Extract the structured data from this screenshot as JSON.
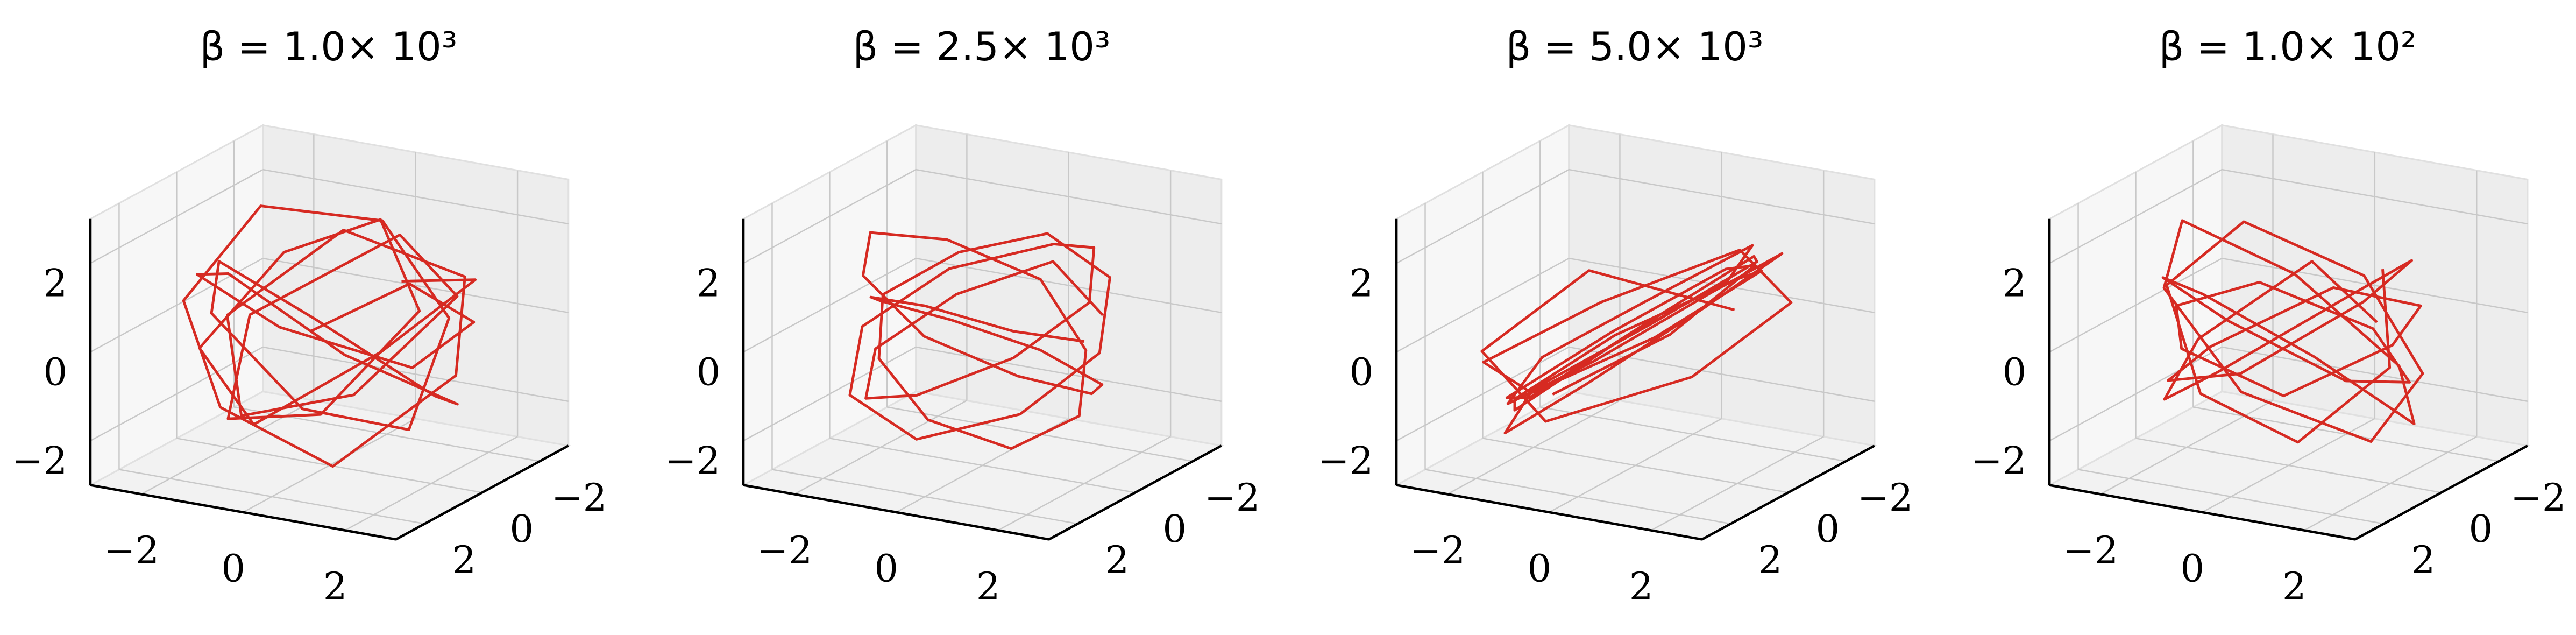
{
  "chart_data": [
    {
      "type": "line3d",
      "title": "β = 1.0× 10³",
      "xlim": [
        -3,
        3
      ],
      "ylim": [
        -3,
        3
      ],
      "zlim": [
        -3,
        3
      ],
      "xticks": [
        {
          "value": -2,
          "label": "−2"
        },
        0,
        2
      ],
      "yticks": [
        {
          "value": -2,
          "label": "−2"
        },
        0,
        2
      ],
      "zticks": [
        {
          "value": -2,
          "label": "−2"
        },
        0,
        2
      ],
      "series": [
        {
          "color": "#d62a22",
          "x": [
            0.3,
            1.8,
            2.1,
            0.5,
            -1.6,
            -2.2,
            -0.8,
            1.2,
            2.4,
            1.0,
            -1.1,
            -2.0,
            -1.3,
            0.6,
            1.9,
            1.5,
            -0.2,
            -1.8,
            -2.3,
            -0.9,
            0.8,
            2.2,
            1.7,
            -0.4,
            -1.5,
            -0.6,
            1.1,
            2.0,
            0.2,
            -1.9,
            -1.2,
            0.9,
            1.6,
            0.1,
            -1.4,
            -2.1,
            -0.3,
            1.3,
            2.3,
            0.4
          ],
          "y": [
            1.2,
            0.4,
            -1.3,
            -2.0,
            -1.1,
            0.7,
            2.1,
            1.6,
            -0.2,
            -1.9,
            -1.4,
            0.3,
            1.8,
            2.0,
            0.6,
            -1.5,
            -2.2,
            -0.8,
            1.0,
            2.2,
            1.3,
            -0.5,
            -1.7,
            -1.2,
            0.9,
            2.0,
            1.1,
            -0.9,
            -2.1,
            -0.6,
            1.4,
            1.9,
            -0.3,
            -1.6,
            -0.9,
            0.8,
            2.1,
            0.5,
            -1.0,
            -1.8
          ],
          "z": [
            0.5,
            1.6,
            0.2,
            -1.4,
            -0.6,
            1.1,
            1.9,
            0.3,
            -1.2,
            -1.9,
            -0.4,
            1.3,
            0.8,
            -0.9,
            -1.6,
            0.1,
            1.7,
            2.2,
            0.6,
            -1.1,
            -2.4,
            -0.7,
            1.0,
            1.8,
            0.4,
            -1.3,
            -0.8,
            0.9,
            1.5,
            -0.2,
            -1.7,
            -1.0,
            0.7,
            2.0,
            1.2,
            -0.5,
            -1.4,
            0.0,
            1.3,
            0.6
          ]
        }
      ]
    },
    {
      "type": "line3d",
      "title": "β = 2.5× 10³",
      "xlim": [
        -3,
        3
      ],
      "ylim": [
        -3,
        3
      ],
      "zlim": [
        -3,
        3
      ],
      "xticks": [
        {
          "value": -2,
          "label": "−2"
        },
        0,
        2
      ],
      "yticks": [
        {
          "value": -2,
          "label": "−2"
        },
        0,
        2
      ],
      "zticks": [
        {
          "value": -2,
          "label": "−2"
        },
        0,
        2
      ],
      "series": [
        {
          "color": "#d62a22",
          "x": [
            2.0,
            1.4,
            0.0,
            -1.4,
            -2.0,
            -1.4,
            0.0,
            1.5,
            2.2,
            1.6,
            0.1,
            -1.5,
            -2.2,
            -1.6,
            -0.1,
            1.3,
            1.9,
            1.3,
            0.0,
            -1.3,
            -1.9,
            -1.2,
            0.2,
            1.6,
            2.3,
            1.7,
            0.0,
            -1.7,
            -2.3,
            -1.5,
            0.1,
            1.4,
            2.1,
            1.4,
            -0.1,
            -1.5,
            -2.1,
            -1.3,
            0.2,
            1.8
          ],
          "y": [
            0.0,
            1.4,
            2.0,
            1.4,
            0.0,
            -1.4,
            -2.0,
            -1.5,
            0.1,
            1.6,
            2.2,
            1.5,
            0.0,
            -1.6,
            -2.2,
            -1.3,
            0.0,
            1.3,
            1.9,
            1.3,
            0.1,
            -1.3,
            -1.9,
            -1.6,
            0.0,
            1.7,
            2.3,
            1.6,
            0.1,
            -1.5,
            -2.3,
            -1.4,
            0.0,
            1.4,
            2.1,
            1.4,
            0.0,
            -1.4,
            -2.1,
            -1.0
          ],
          "z": [
            0.2,
            0.8,
            1.3,
            1.0,
            0.3,
            -0.5,
            -1.1,
            -1.4,
            -0.9,
            -0.1,
            0.7,
            1.5,
            1.8,
            1.2,
            0.4,
            -0.6,
            -1.5,
            -1.9,
            -1.3,
            -0.4,
            0.5,
            1.1,
            1.6,
            1.0,
            0.0,
            -0.9,
            -1.6,
            -1.2,
            -0.3,
            0.6,
            1.2,
            1.7,
            1.1,
            0.2,
            -0.7,
            -1.3,
            -0.8,
            0.1,
            0.9,
            0.4
          ]
        }
      ]
    },
    {
      "type": "line3d",
      "title": "β = 5.0× 10³",
      "xlim": [
        -3,
        3
      ],
      "ylim": [
        -3,
        3
      ],
      "zlim": [
        -3,
        3
      ],
      "xticks": [
        {
          "value": -2,
          "label": "−2"
        },
        0,
        2
      ],
      "yticks": [
        {
          "value": -2,
          "label": "−2"
        },
        0,
        2
      ],
      "zticks": [
        {
          "value": -2,
          "label": "−2"
        },
        0,
        2
      ],
      "series": [
        {
          "color": "#d62a22",
          "x": [
            -0.5,
            1.3,
            2.0,
            0.7,
            -1.2,
            -2.3,
            -1.0,
            0.9,
            2.1,
            1.2,
            -0.6,
            -1.9,
            -1.6,
            0.2,
            1.8,
            2.2,
            0.4,
            -1.4,
            -2.0,
            -0.7,
            1.0,
            1.9,
            0.8,
            -1.1,
            -2.2,
            -1.3,
            0.5,
            2.0,
            1.4,
            -0.3,
            -1.7,
            -1.8,
            0.0,
            1.6,
            2.1,
            0.6,
            -1.2,
            -2.0,
            -0.8,
            1.1
          ],
          "y": [
            2.0,
            1.1,
            -0.6,
            -1.9,
            -1.3,
            0.4,
            1.9,
            1.5,
            -0.4,
            -2.1,
            -1.6,
            0.2,
            1.7,
            2.1,
            0.8,
            -1.2,
            -2.0,
            -1.0,
            0.9,
            2.0,
            1.4,
            -0.7,
            -1.8,
            -1.4,
            0.3,
            1.9,
            1.6,
            -0.1,
            -1.9,
            -1.2,
            0.6,
            2.1,
            1.2,
            -0.8,
            -1.7,
            -0.9,
            1.0,
            1.8,
            0.2,
            -1.5
          ],
          "z": [
            -0.8,
            0.6,
            1.7,
            0.9,
            -0.7,
            -1.8,
            -1.0,
            0.8,
            2.0,
            1.1,
            -0.5,
            -1.6,
            -2.0,
            -0.4,
            1.2,
            1.8,
            0.3,
            -1.3,
            -1.7,
            0.0,
            1.4,
            2.1,
            0.7,
            -0.9,
            -2.1,
            -1.1,
            0.6,
            1.6,
            1.0,
            -0.6,
            -1.5,
            -0.3,
            1.1,
            1.9,
            0.5,
            -1.2,
            -1.9,
            -0.2,
            1.3,
            0.2
          ]
        }
      ]
    },
    {
      "type": "line3d",
      "title": "β = 1.0× 10²",
      "xlim": [
        -3,
        3
      ],
      "ylim": [
        -3,
        3
      ],
      "zlim": [
        -3,
        3
      ],
      "xticks": [
        {
          "value": -2,
          "label": "−2"
        },
        0,
        2
      ],
      "yticks": [
        {
          "value": -2,
          "label": "−2"
        },
        0,
        2
      ],
      "zticks": [
        {
          "value": -2,
          "label": "−2"
        },
        0,
        2
      ],
      "series": [
        {
          "color": "#d62a22",
          "x": [
            1.0,
            2.1,
            1.2,
            -0.6,
            -2.0,
            -1.5,
            0.3,
            1.9,
            1.9,
            0.2,
            -1.6,
            -2.2,
            -0.9,
            1.1,
            2.3,
            1.3,
            -0.5,
            -1.9,
            -1.7,
            0.0,
            1.7,
            2.0,
            0.5,
            -1.3,
            -2.1,
            -1.0,
            0.8,
            2.2,
            1.5,
            -0.4,
            -1.8,
            -1.4,
            0.4,
            1.8,
            1.6,
            -0.2,
            -1.7,
            -2.0,
            -0.5,
            1.4
          ],
          "y": [
            -1.5,
            0.2,
            1.8,
            2.0,
            0.7,
            -1.1,
            -2.1,
            -1.3,
            0.5,
            2.0,
            1.5,
            -0.2,
            -1.8,
            -1.9,
            -0.3,
            1.4,
            2.1,
            1.0,
            -0.9,
            -2.0,
            -1.2,
            0.6,
            1.9,
            1.6,
            0.0,
            -1.6,
            -2.2,
            -0.7,
            1.1,
            2.0,
            1.0,
            -0.8,
            -1.9,
            -1.1,
            0.8,
            2.1,
            1.3,
            -0.4,
            -1.7,
            -0.6
          ],
          "z": [
            1.1,
            -0.3,
            -1.6,
            -0.8,
            0.9,
            1.8,
            0.6,
            -1.0,
            -1.9,
            -0.6,
            1.2,
            2.0,
            0.5,
            -1.2,
            -1.7,
            0.2,
            1.5,
            1.2,
            -0.4,
            -1.8,
            -1.2,
            0.7,
            1.9,
            0.9,
            -0.8,
            -2.2,
            -0.9,
            0.8,
            1.7,
            0.3,
            -1.1,
            -1.5,
            0.1,
            1.6,
            1.4,
            -0.2,
            -1.4,
            -0.7,
            0.9,
            0.3
          ]
        }
      ]
    }
  ]
}
